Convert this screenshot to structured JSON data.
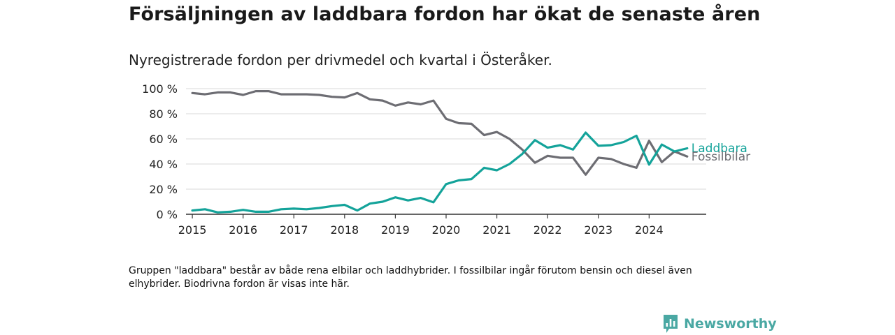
{
  "title": "Försäljningen av laddbara fordon har ökat de senaste åren",
  "subtitle": "Nyregistrerade fordon per drivmedel och kvartal i Österåker.",
  "footnote": "Gruppen \"laddbara\" består av både rena elbilar och laddhybrider. I fossilbilar ingår förutom bensin och diesel även elhybrider. Biodrivna fordon är visas inte här.",
  "brand": {
    "name": "Newsworthy"
  },
  "colors": {
    "laddbara": "#14a39a",
    "fossilbilar": "#6d6d73",
    "grid": "#d9d9d9",
    "axis": "#333333",
    "brand": "#4aa8a3"
  },
  "chart_data": {
    "type": "line",
    "title": "",
    "xlabel": "",
    "ylabel": "",
    "ylim": [
      0,
      100
    ],
    "y_ticks": [
      0,
      20,
      40,
      60,
      80,
      100
    ],
    "y_tick_labels": [
      "0 %",
      "20 %",
      "40 %",
      "60 %",
      "80 %",
      "100 %"
    ],
    "xlim": [
      2014.875,
      2025.125
    ],
    "x_ticks": [
      2015,
      2016,
      2017,
      2018,
      2019,
      2020,
      2021,
      2022,
      2023,
      2024
    ],
    "x_tick_labels": [
      "2015",
      "2016",
      "2017",
      "2018",
      "2019",
      "2020",
      "2021",
      "2022",
      "2023",
      "2024"
    ],
    "x": [
      2015.0,
      2015.25,
      2015.5,
      2015.75,
      2016.0,
      2016.25,
      2016.5,
      2016.75,
      2017.0,
      2017.25,
      2017.5,
      2017.75,
      2018.0,
      2018.25,
      2018.5,
      2018.75,
      2019.0,
      2019.25,
      2019.5,
      2019.75,
      2020.0,
      2020.25,
      2020.5,
      2020.75,
      2021.0,
      2021.25,
      2021.5,
      2021.75,
      2022.0,
      2022.25,
      2022.5,
      2022.75,
      2023.0,
      2023.25,
      2023.5,
      2023.75,
      2024.0,
      2024.25,
      2024.5,
      2024.75
    ],
    "series": [
      {
        "name": "Laddbara",
        "key": "laddbara",
        "values": [
          3,
          4,
          1.5,
          2,
          3.5,
          2,
          2,
          4,
          4.5,
          4,
          5,
          6.5,
          7.5,
          3,
          8.5,
          10,
          13.5,
          11,
          13,
          9.5,
          24,
          27,
          28,
          37,
          35,
          40,
          48,
          59,
          53,
          55,
          51.5,
          65,
          54.5,
          55,
          57.5,
          62.5,
          39.5,
          55.5,
          50,
          52.5
        ]
      },
      {
        "name": "Fossilbilar",
        "key": "fossilbilar",
        "values": [
          96.5,
          95.5,
          97,
          97,
          95,
          98,
          98,
          95.5,
          95.5,
          95.5,
          95,
          93.5,
          93,
          96.5,
          91.5,
          90.5,
          86.5,
          89,
          87.5,
          90.5,
          76,
          72.5,
          72,
          63,
          65.5,
          60,
          51.5,
          41,
          46.5,
          45,
          45,
          31.5,
          45,
          44,
          40,
          37,
          58.5,
          41.5,
          50,
          46
        ]
      }
    ]
  }
}
